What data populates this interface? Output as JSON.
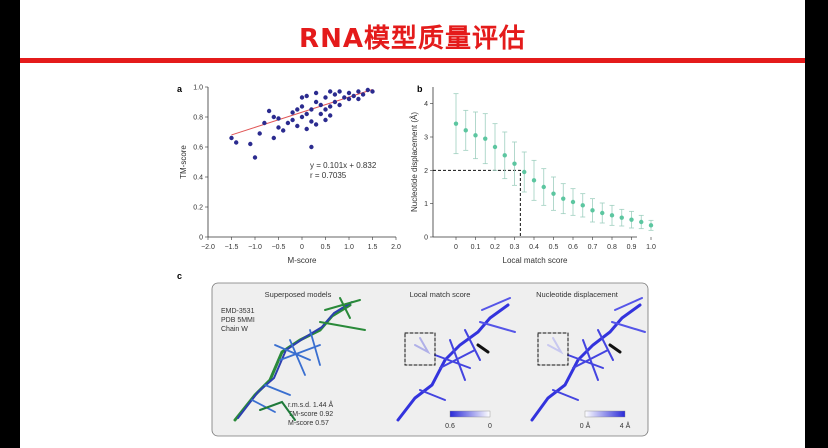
{
  "slide": {
    "title": "RNA模型质量评估"
  },
  "panel_a": {
    "label": "a",
    "xlabel": "M-score",
    "ylabel": "TM-score",
    "x_ticks": [
      "−2.0",
      "−1.5",
      "−1.0",
      "−0.5",
      "0",
      "0.5",
      "1.0",
      "1.5",
      "2.0"
    ],
    "y_ticks": [
      "0",
      "0.2",
      "0.4",
      "0.6",
      "0.8",
      "1.0"
    ],
    "equation": "y = 0.101x + 0.832",
    "r_text": "r = 0.7035"
  },
  "panel_b": {
    "label": "b",
    "xlabel": "Local match score",
    "ylabel": "Nucleotide displacement (Å)",
    "x_ticks": [
      "0",
      "0.1",
      "0.2",
      "0.3",
      "0.4",
      "0.5",
      "0.6",
      "0.7",
      "0.8",
      "0.9",
      "1.0"
    ],
    "y_ticks": [
      "0",
      "1",
      "2",
      "3",
      "4"
    ]
  },
  "panel_c": {
    "label": "c",
    "sub1_title": "Superposed models",
    "sub2_title": "Local match score",
    "sub3_title": "Nucleotide displacement",
    "info_lines": [
      "EMD-3531",
      "PDB 5MMI",
      "Chain W"
    ],
    "metrics": [
      "r.m.s.d. 1.44 Å",
      "TM-score 0.92",
      "M-score 0.57"
    ],
    "colorbar1": [
      "0.6",
      "0"
    ],
    "colorbar2": [
      "0 Å",
      "4 Å"
    ]
  },
  "chart_data": [
    {
      "type": "scatter",
      "xlabel": "M-score",
      "ylabel": "TM-score",
      "xlim": [
        -2.0,
        2.0
      ],
      "ylim": [
        0,
        1.0
      ],
      "fit": {
        "slope": 0.101,
        "intercept": 0.832,
        "r": 0.7035
      },
      "points": [
        [
          -1.5,
          0.66
        ],
        [
          -1.4,
          0.63
        ],
        [
          -1.0,
          0.53
        ],
        [
          -1.1,
          0.62
        ],
        [
          -0.9,
          0.69
        ],
        [
          -0.8,
          0.76
        ],
        [
          -0.6,
          0.8
        ],
        [
          -0.5,
          0.73
        ],
        [
          -0.5,
          0.79
        ],
        [
          -0.4,
          0.71
        ],
        [
          -0.3,
          0.76
        ],
        [
          -0.2,
          0.78
        ],
        [
          -0.2,
          0.83
        ],
        [
          -0.1,
          0.85
        ],
        [
          0.0,
          0.8
        ],
        [
          0.0,
          0.87
        ],
        [
          0.1,
          0.72
        ],
        [
          0.1,
          0.82
        ],
        [
          0.1,
          0.94
        ],
        [
          0.2,
          0.6
        ],
        [
          0.2,
          0.77
        ],
        [
          0.2,
          0.85
        ],
        [
          0.3,
          0.75
        ],
        [
          0.3,
          0.9
        ],
        [
          0.4,
          0.82
        ],
        [
          0.4,
          0.88
        ],
        [
          0.5,
          0.78
        ],
        [
          0.5,
          0.85
        ],
        [
          0.5,
          0.93
        ],
        [
          0.6,
          0.87
        ],
        [
          0.6,
          0.81
        ],
        [
          0.7,
          0.9
        ],
        [
          0.7,
          0.95
        ],
        [
          0.8,
          0.88
        ],
        [
          0.9,
          0.93
        ],
        [
          1.0,
          0.92
        ],
        [
          1.0,
          0.96
        ],
        [
          1.1,
          0.94
        ],
        [
          1.2,
          0.97
        ],
        [
          1.3,
          0.95
        ],
        [
          1.4,
          0.98
        ],
        [
          -0.7,
          0.84
        ],
        [
          -0.1,
          0.74
        ],
        [
          0.3,
          0.96
        ],
        [
          0.8,
          0.97
        ],
        [
          1.2,
          0.92
        ],
        [
          -0.6,
          0.66
        ],
        [
          0.0,
          0.93
        ],
        [
          0.6,
          0.97
        ],
        [
          1.5,
          0.97
        ]
      ]
    },
    {
      "type": "scatter",
      "xlabel": "Local match score",
      "ylabel": "Nucleotide displacement (Å)",
      "xlim": [
        0,
        1.0
      ],
      "ylim": [
        0,
        4.5
      ],
      "x": [
        0.0,
        0.05,
        0.1,
        0.15,
        0.2,
        0.25,
        0.3,
        0.35,
        0.4,
        0.45,
        0.5,
        0.55,
        0.6,
        0.65,
        0.7,
        0.75,
        0.8,
        0.85,
        0.9,
        0.95,
        1.0
      ],
      "y": [
        3.4,
        3.2,
        3.05,
        2.95,
        2.7,
        2.45,
        2.2,
        1.95,
        1.7,
        1.5,
        1.3,
        1.15,
        1.05,
        0.95,
        0.8,
        0.72,
        0.65,
        0.58,
        0.52,
        0.45,
        0.35
      ],
      "err": [
        0.9,
        0.6,
        0.7,
        0.75,
        0.7,
        0.7,
        0.65,
        0.6,
        0.6,
        0.55,
        0.5,
        0.45,
        0.4,
        0.35,
        0.35,
        0.3,
        0.3,
        0.25,
        0.25,
        0.2,
        0.15
      ],
      "threshold": {
        "x": 0.33,
        "y": 2.0
      }
    }
  ]
}
